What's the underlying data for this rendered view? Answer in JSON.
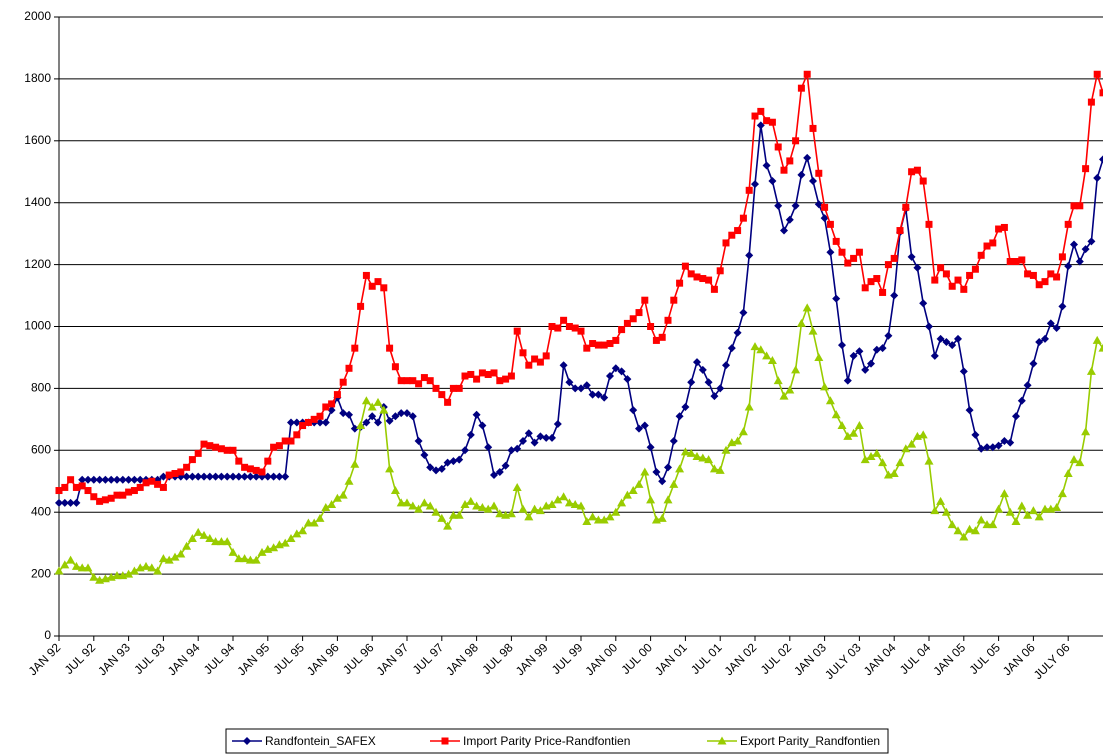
{
  "chart_data": {
    "type": "line",
    "categories": [
      "JAN 92",
      null,
      null,
      null,
      null,
      null,
      "JUL 92",
      null,
      null,
      null,
      null,
      null,
      "JAN 93",
      null,
      null,
      null,
      null,
      null,
      "JUL 93",
      null,
      null,
      null,
      null,
      null,
      "JAN 94",
      null,
      null,
      null,
      null,
      null,
      "JUL 94",
      null,
      null,
      null,
      null,
      null,
      "JAN 95",
      null,
      null,
      null,
      null,
      null,
      "JUL 95",
      null,
      null,
      null,
      null,
      null,
      "JAN 96",
      null,
      null,
      null,
      null,
      null,
      "JUL 96",
      null,
      null,
      null,
      null,
      null,
      "JAN 97",
      null,
      null,
      null,
      null,
      null,
      "JUL 97",
      null,
      null,
      null,
      null,
      null,
      "JAN 98",
      null,
      null,
      null,
      null,
      null,
      "JUL 98",
      null,
      null,
      null,
      null,
      null,
      "JAN 99",
      null,
      null,
      null,
      null,
      null,
      "JUL 99",
      null,
      null,
      null,
      null,
      null,
      "JAN 00",
      null,
      null,
      null,
      null,
      null,
      "JUL 00",
      null,
      null,
      null,
      null,
      null,
      "JAN 01",
      null,
      null,
      null,
      null,
      null,
      "JUL 01",
      null,
      null,
      null,
      null,
      null,
      "JAN 02",
      null,
      null,
      null,
      null,
      null,
      "JUL 02",
      null,
      null,
      null,
      null,
      null,
      "JAN 03",
      null,
      null,
      null,
      null,
      null,
      "JULY 03",
      null,
      null,
      null,
      null,
      null,
      "JAN 04",
      null,
      null,
      null,
      null,
      null,
      "JUL 04",
      null,
      null,
      null,
      null,
      null,
      "JAN 05",
      null,
      null,
      null,
      null,
      null,
      "JUL 05",
      null,
      null,
      null,
      null,
      null,
      "JAN 06",
      null,
      null,
      null,
      null,
      null,
      "JULY 06",
      null,
      null,
      null,
      null,
      null,
      null
    ],
    "series": [
      {
        "name": "Randfontein_SAFEX",
        "color": "#000080",
        "marker": "diamond",
        "values": [
          430,
          430,
          430,
          430,
          505,
          505,
          505,
          505,
          505,
          505,
          505,
          505,
          505,
          505,
          505,
          505,
          505,
          505,
          515,
          515,
          515,
          515,
          515,
          515,
          515,
          515,
          515,
          515,
          515,
          515,
          515,
          515,
          515,
          515,
          515,
          515,
          515,
          515,
          515,
          515,
          690,
          690,
          690,
          690,
          690,
          690,
          690,
          730,
          770,
          720,
          715,
          670,
          675,
          690,
          710,
          690,
          740,
          695,
          710,
          720,
          720,
          710,
          630,
          585,
          545,
          535,
          540,
          560,
          565,
          570,
          600,
          650,
          715,
          680,
          610,
          520,
          530,
          550,
          600,
          605,
          630,
          655,
          625,
          645,
          640,
          640,
          685,
          875,
          820,
          800,
          800,
          810,
          780,
          780,
          770,
          840,
          865,
          855,
          830,
          730,
          670,
          680,
          610,
          530,
          500,
          545,
          630,
          710,
          740,
          820,
          885,
          860,
          820,
          775,
          800,
          875,
          930,
          980,
          1045,
          1230,
          1460,
          1650,
          1520,
          1470,
          1390,
          1310,
          1345,
          1390,
          1490,
          1545,
          1470,
          1395,
          1350,
          1240,
          1090,
          940,
          825,
          905,
          920,
          860,
          880,
          925,
          930,
          970,
          1100,
          1305,
          1380,
          1225,
          1190,
          1075,
          1000,
          905,
          960,
          950,
          940,
          960,
          855,
          730,
          650,
          605,
          610,
          610,
          615,
          630,
          625,
          710,
          760,
          810,
          880,
          950,
          960,
          1010,
          995,
          1065,
          1195,
          1265,
          1210,
          1250,
          1275,
          1480,
          1540
        ]
      },
      {
        "name": "Import Parity Price-Randfontien",
        "color": "#ff0000",
        "marker": "square",
        "values": [
          470,
          480,
          505,
          480,
          485,
          470,
          450,
          435,
          440,
          445,
          455,
          455,
          465,
          470,
          480,
          495,
          500,
          490,
          480,
          520,
          525,
          530,
          545,
          570,
          590,
          620,
          615,
          610,
          605,
          600,
          600,
          565,
          545,
          540,
          535,
          530,
          565,
          610,
          615,
          630,
          630,
          650,
          680,
          690,
          700,
          710,
          740,
          750,
          780,
          820,
          865,
          930,
          1065,
          1165,
          1130,
          1145,
          1125,
          930,
          870,
          825,
          825,
          825,
          815,
          835,
          825,
          800,
          780,
          755,
          800,
          800,
          840,
          845,
          830,
          850,
          845,
          850,
          825,
          830,
          840,
          985,
          915,
          875,
          895,
          885,
          905,
          1000,
          995,
          1020,
          1000,
          995,
          985,
          930,
          945,
          940,
          940,
          945,
          955,
          990,
          1010,
          1025,
          1045,
          1085,
          1000,
          955,
          965,
          1020,
          1085,
          1140,
          1195,
          1170,
          1160,
          1155,
          1150,
          1120,
          1180,
          1270,
          1295,
          1310,
          1350,
          1440,
          1680,
          1695,
          1665,
          1660,
          1580,
          1505,
          1535,
          1600,
          1770,
          1815,
          1640,
          1495,
          1385,
          1330,
          1275,
          1240,
          1205,
          1220,
          1240,
          1125,
          1145,
          1155,
          1110,
          1200,
          1220,
          1310,
          1385,
          1500,
          1505,
          1470,
          1330,
          1150,
          1190,
          1170,
          1130,
          1150,
          1120,
          1165,
          1185,
          1230,
          1260,
          1270,
          1315,
          1320,
          1210,
          1210,
          1215,
          1170,
          1165,
          1135,
          1145,
          1170,
          1160,
          1225,
          1330,
          1390,
          1390,
          1510,
          1725,
          1815,
          1755
        ]
      },
      {
        "name": "Export Parity_Randfontien",
        "color": "#99cc00",
        "marker": "triangle",
        "values": [
          210,
          230,
          245,
          225,
          220,
          220,
          190,
          180,
          185,
          190,
          195,
          195,
          200,
          210,
          220,
          225,
          220,
          210,
          250,
          245,
          255,
          265,
          290,
          315,
          335,
          325,
          315,
          305,
          305,
          305,
          270,
          250,
          250,
          245,
          245,
          270,
          280,
          285,
          295,
          300,
          315,
          330,
          340,
          365,
          365,
          380,
          415,
          425,
          445,
          455,
          500,
          555,
          680,
          760,
          740,
          755,
          730,
          540,
          470,
          430,
          430,
          420,
          410,
          430,
          420,
          400,
          380,
          355,
          390,
          390,
          425,
          435,
          420,
          415,
          410,
          420,
          395,
          390,
          395,
          480,
          410,
          385,
          410,
          405,
          420,
          425,
          440,
          450,
          430,
          425,
          420,
          370,
          385,
          375,
          375,
          385,
          400,
          430,
          455,
          470,
          490,
          530,
          440,
          375,
          380,
          440,
          490,
          540,
          595,
          590,
          580,
          575,
          570,
          540,
          535,
          600,
          625,
          630,
          660,
          740,
          935,
          925,
          905,
          890,
          825,
          775,
          795,
          860,
          1010,
          1060,
          985,
          900,
          805,
          760,
          715,
          680,
          645,
          655,
          680,
          570,
          580,
          590,
          560,
          520,
          525,
          560,
          605,
          620,
          645,
          650,
          565,
          405,
          435,
          400,
          360,
          340,
          320,
          345,
          340,
          375,
          360,
          360,
          410,
          460,
          400,
          370,
          420,
          390,
          405,
          385,
          410,
          410,
          415,
          460,
          525,
          570,
          560,
          660,
          855,
          955,
          930
        ]
      }
    ],
    "ylim": [
      0,
      2000
    ],
    "yticks": [
      0,
      200,
      400,
      600,
      800,
      1000,
      1200,
      1400,
      1600,
      1800,
      2000
    ],
    "grid": true,
    "legend": "bottom"
  }
}
